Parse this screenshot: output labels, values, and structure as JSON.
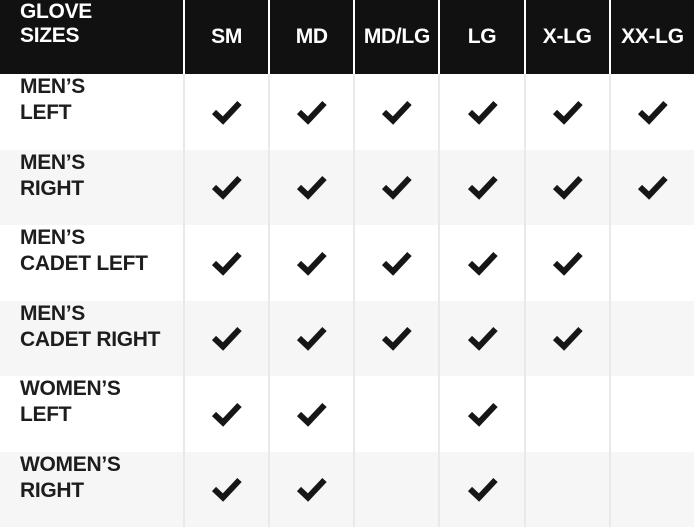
{
  "table": {
    "title_line1": "GLOVE",
    "title_line2": "SIZES",
    "columns": [
      "SM",
      "MD",
      "MD/LG",
      "LG",
      "X-LG",
      "XX-LG"
    ],
    "rows": [
      {
        "label_line1": "MEN’S",
        "label_line2": "LEFT",
        "checks": [
          true,
          true,
          true,
          true,
          true,
          true
        ]
      },
      {
        "label_line1": "MEN’S",
        "label_line2": "RIGHT",
        "checks": [
          true,
          true,
          true,
          true,
          true,
          true
        ]
      },
      {
        "label_line1": "MEN’S",
        "label_line2": "CADET LEFT",
        "checks": [
          true,
          true,
          true,
          true,
          true,
          false
        ]
      },
      {
        "label_line1": "MEN’S",
        "label_line2": "CADET RIGHT",
        "checks": [
          true,
          true,
          true,
          true,
          true,
          false
        ]
      },
      {
        "label_line1": "WOMEN’S",
        "label_line2": "LEFT",
        "checks": [
          true,
          true,
          false,
          true,
          false,
          false
        ]
      },
      {
        "label_line1": "WOMEN’S",
        "label_line2": "RIGHT",
        "checks": [
          true,
          true,
          false,
          true,
          false,
          false
        ]
      }
    ]
  },
  "colors": {
    "header_bg": "#111111",
    "header_text": "#ffffff",
    "row_alt": "#f6f6f6",
    "separator": "#e9e9e9",
    "label_text": "#1d1d1d",
    "check": "#161616"
  }
}
